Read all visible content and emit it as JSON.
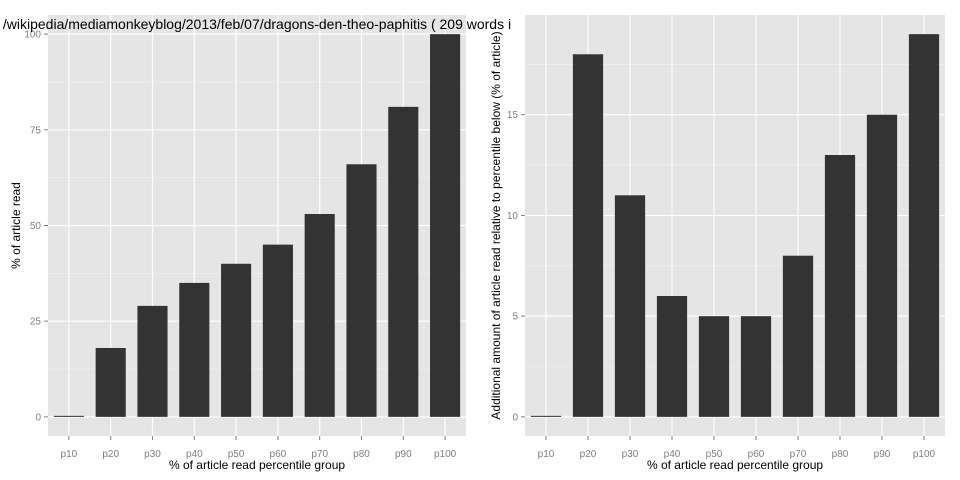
{
  "chart_data": [
    {
      "type": "bar",
      "title": "/wikipedia/mediamonkeyblog/2013/feb/07/dragons-den-theo-paphitis ( 209 words i",
      "xlabel": "% of article read percentile group",
      "ylabel": "% of article read",
      "categories": [
        "p10",
        "p20",
        "p30",
        "p40",
        "p50",
        "p60",
        "p70",
        "p80",
        "p90",
        "p100"
      ],
      "values": [
        0,
        18,
        29,
        35,
        40,
        45,
        53,
        66,
        81,
        100
      ],
      "yticks": [
        0,
        25,
        50,
        75,
        100
      ],
      "ylim": [
        -5,
        105
      ],
      "grid": true,
      "bar_color": "#333333",
      "panel_color": "#e5e5e5"
    },
    {
      "type": "bar",
      "title": "",
      "xlabel": "% of article read percentile group",
      "ylabel": "Additional amount of article read relative to percentile below (% of article)",
      "categories": [
        "p10",
        "p20",
        "p30",
        "p40",
        "p50",
        "p60",
        "p70",
        "p80",
        "p90",
        "p100"
      ],
      "values": [
        0,
        18,
        11,
        6,
        5,
        5,
        8,
        13,
        15,
        19
      ],
      "yticks": [
        0,
        5,
        10,
        15
      ],
      "ylim": [
        -0.95,
        19.95
      ],
      "grid": true,
      "bar_color": "#333333",
      "panel_color": "#e5e5e5"
    }
  ]
}
